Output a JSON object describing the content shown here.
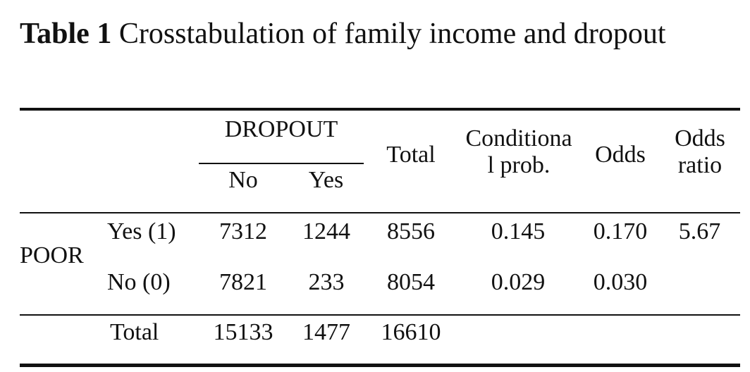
{
  "caption": {
    "label": "Table 1",
    "text": " Crosstabulation of family income and dropout"
  },
  "table": {
    "header": {
      "group": "DROPOUT",
      "no": "No",
      "yes": "Yes",
      "total": "Total",
      "cond_prob_1": "Conditiona",
      "cond_prob_2": "l prob.",
      "odds": "Odds",
      "odds_ratio_1": "Odds",
      "odds_ratio_2": "ratio"
    },
    "row_group": "POOR",
    "rows": [
      {
        "label": "Yes (1)",
        "no": "7312",
        "yes": "1244",
        "total": "8556",
        "cond_prob": "0.145",
        "odds": "0.170",
        "odds_ratio": "5.67"
      },
      {
        "label": "No (0)",
        "no": "7821",
        "yes": "233",
        "total": "8054",
        "cond_prob": "0.029",
        "odds": "0.030",
        "odds_ratio": ""
      }
    ],
    "totals": {
      "label": "Total",
      "no": "15133",
      "yes": "1477",
      "total": "16610"
    }
  }
}
